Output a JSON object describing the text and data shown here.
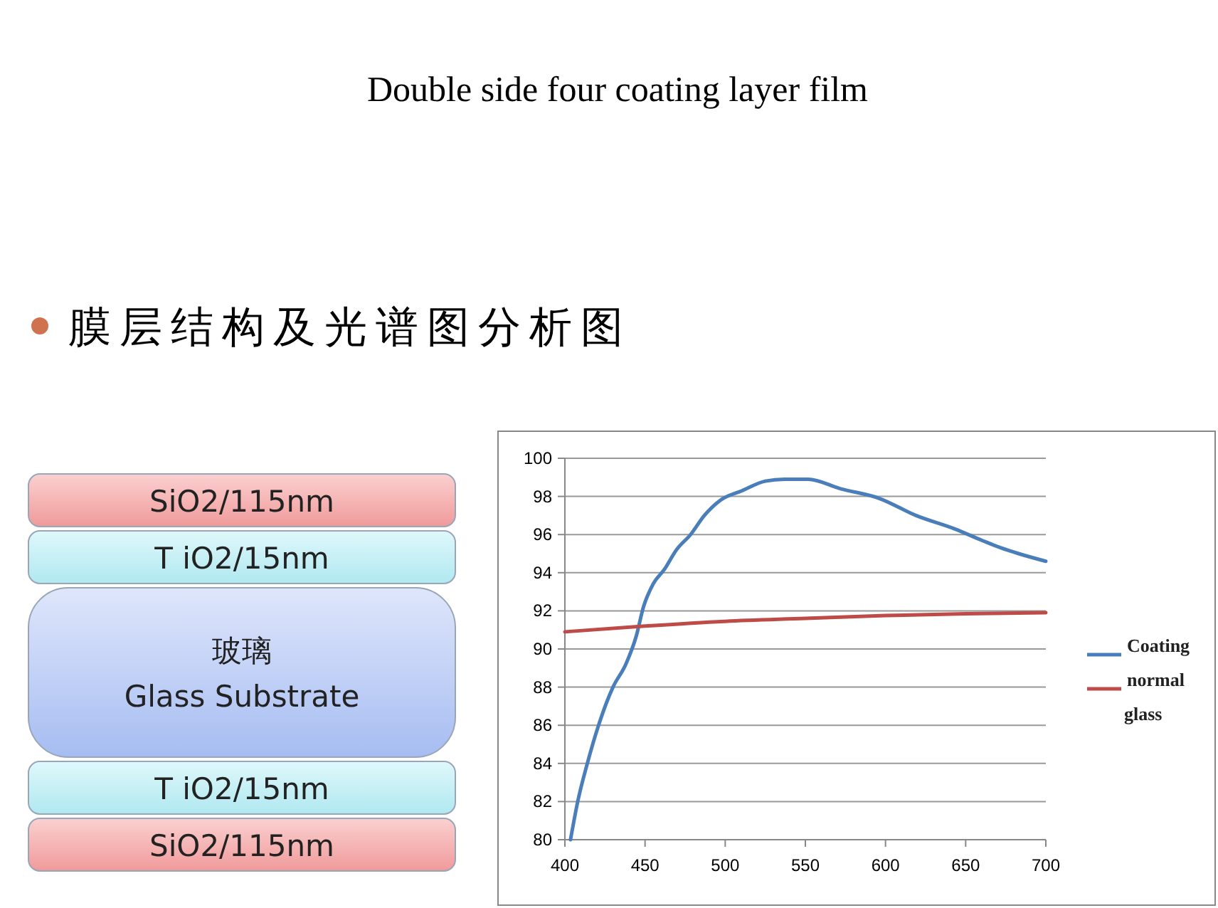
{
  "chart_data": {
    "type": "line",
    "title": "Double side four coating layer film",
    "subtitle": "膜层结构及光谱图分析图",
    "annotations": [
      "SiO2/115nm",
      "T iO2/15nm",
      "玻璃",
      "Glass Substrate",
      "T iO2/15nm",
      "SiO2/115nm"
    ],
    "series": [
      {
        "name": "Coating",
        "color": "#4a7ebb",
        "x": [
          403.5,
          408,
          414,
          421,
          430,
          438,
          444.6,
          449,
          455,
          462.3,
          469.6,
          478.4,
          487,
          497,
          510.6,
          525,
          537,
          551.8,
          572,
          596,
          619,
          643,
          660,
          672,
          683,
          700
        ],
        "values": [
          80,
          82,
          84,
          86,
          88,
          89.2,
          90.7,
          92.2,
          93.4,
          94.2,
          95.2,
          96,
          97,
          97.8,
          98.3,
          98.8,
          98.9,
          98.9,
          98.4,
          97.9,
          97,
          96.3,
          95.7,
          95.3,
          95,
          94.6
        ]
      },
      {
        "name": "normal glass",
        "color": "#be4b48",
        "x": [
          400,
          450,
          500,
          550,
          600,
          650,
          700
        ],
        "values": [
          90.9,
          91.2,
          91.45,
          91.6,
          91.75,
          91.85,
          91.9
        ]
      }
    ],
    "xlim": [
      400,
      700
    ],
    "xticks": [
      400,
      450,
      500,
      550,
      600,
      650,
      700
    ],
    "ylim": [
      80,
      100
    ],
    "yticks": [
      80,
      82,
      84,
      86,
      88,
      90,
      92,
      94,
      96,
      98,
      100
    ],
    "grid": "y",
    "legend": "right",
    "marker": "none",
    "line_style": "solid"
  }
}
